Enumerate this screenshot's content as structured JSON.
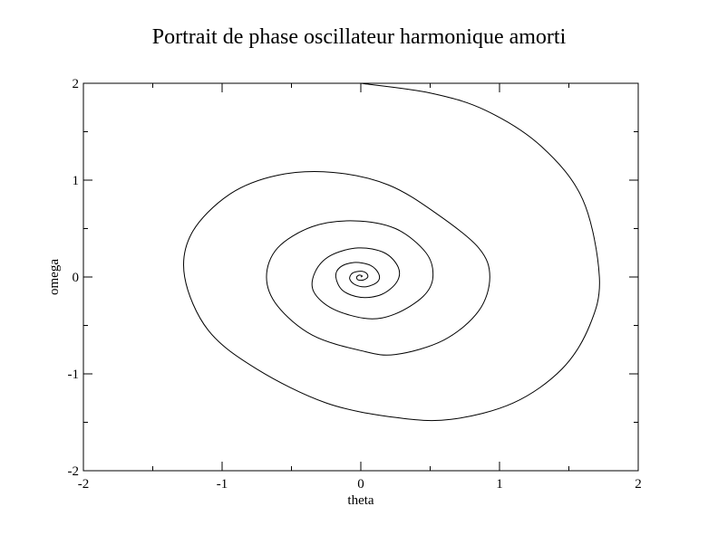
{
  "chart_data": {
    "type": "line",
    "title": "Portrait de phase oscillateur harmonique amorti",
    "xlabel": "theta",
    "ylabel": "omega",
    "xlim": [
      -2,
      2
    ],
    "ylim": [
      -2,
      2
    ],
    "x_ticks": [
      "-2",
      "-1",
      "0",
      "1",
      "2"
    ],
    "y_ticks": [
      "-2",
      "-1",
      "0",
      "1",
      "2"
    ],
    "grid": false,
    "legend": "none",
    "colors": {
      "line": "#000000",
      "frame": "#000000",
      "background": "#ffffff"
    },
    "series": [
      {
        "x": [
          0.0,
          0.5,
          0.9,
          1.3,
          1.6,
          1.72,
          1.65,
          1.45,
          1.1,
          0.65,
          0.25,
          -0.25,
          -0.75,
          -1.1,
          -1.27,
          -1.22,
          -0.95,
          -0.6,
          -0.2,
          0.2,
          0.55,
          0.85,
          0.93,
          0.85,
          0.6,
          0.25,
          0.0,
          -0.35,
          -0.6,
          -0.68,
          -0.6,
          -0.35,
          -0.05,
          0.25,
          0.47,
          0.52,
          0.45,
          0.25,
          0.05,
          -0.2,
          -0.34,
          -0.33,
          -0.22,
          -0.02,
          0.17,
          0.27,
          0.26,
          0.15,
          0.0,
          -0.13,
          -0.18,
          -0.15,
          -0.05,
          0.07,
          0.13,
          0.12,
          0.04,
          -0.04,
          -0.08,
          -0.06,
          0.0,
          0.04,
          0.05,
          0.02,
          -0.02,
          -0.03,
          -0.01,
          0.01,
          0.0
        ],
        "y": [
          2.0,
          1.9,
          1.72,
          1.35,
          0.8,
          0.0,
          -0.5,
          -0.95,
          -1.3,
          -1.47,
          -1.45,
          -1.3,
          -0.95,
          -0.55,
          0.0,
          0.45,
          0.85,
          1.05,
          1.08,
          0.95,
          0.65,
          0.3,
          0.0,
          -0.35,
          -0.65,
          -0.8,
          -0.76,
          -0.6,
          -0.3,
          0.0,
          0.3,
          0.52,
          0.58,
          0.5,
          0.25,
          0.0,
          -0.2,
          -0.38,
          -0.43,
          -0.33,
          -0.15,
          0.05,
          0.22,
          0.3,
          0.25,
          0.1,
          -0.05,
          -0.18,
          -0.21,
          -0.14,
          0.0,
          0.1,
          0.15,
          0.12,
          0.03,
          -0.05,
          -0.1,
          -0.08,
          -0.02,
          0.04,
          0.06,
          0.04,
          0.0,
          -0.03,
          -0.03,
          0.0,
          0.02,
          0.01,
          0.0
        ]
      }
    ]
  }
}
